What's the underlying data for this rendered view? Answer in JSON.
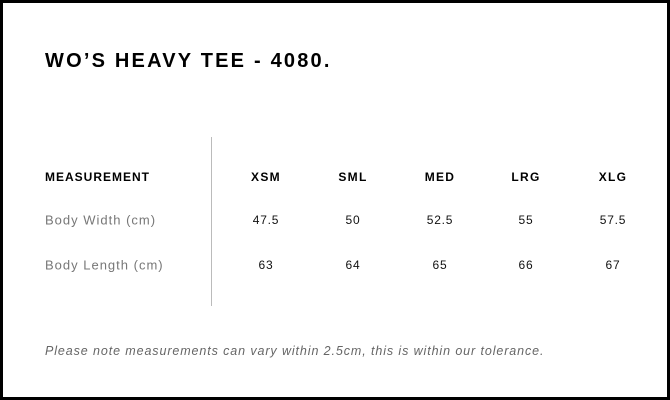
{
  "title": "WO’S HEAVY TEE - 4080.",
  "table": {
    "header": "MEASUREMENT",
    "sizes": [
      "XSM",
      "SML",
      "MED",
      "LRG",
      "XLG"
    ],
    "rows": [
      {
        "label": "Body Width (cm)",
        "values": [
          "47.5",
          "50",
          "52.5",
          "55",
          "57.5"
        ]
      },
      {
        "label": "Body Length (cm)",
        "values": [
          "63",
          "64",
          "65",
          "66",
          "67"
        ]
      }
    ]
  },
  "note": "Please note measurements can vary within 2.5cm, this is within our tolerance."
}
